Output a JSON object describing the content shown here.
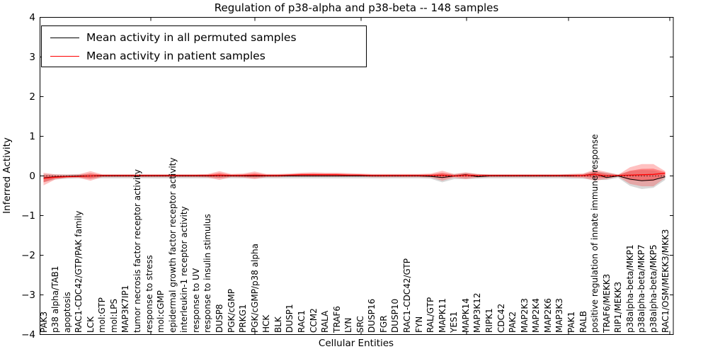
{
  "chart_data": {
    "type": "line",
    "title": "Regulation of p38-alpha and p38-beta -- 148 samples",
    "xlabel": "Cellular Entities",
    "ylabel": "Inferred Activity",
    "ylim": [
      -4,
      4
    ],
    "yticks": [
      4,
      3,
      2,
      1,
      0,
      -1,
      -2,
      -3,
      -4
    ],
    "grid": false,
    "legend_position": "upper left",
    "zero_line_style": "dotted",
    "sample_count": 148,
    "categories": [
      "PAK3",
      "p38 alpha/TAB1",
      "apoptosis",
      "RAC1-CDC42/GTP/PAK family",
      "LCK",
      "mol:GTP",
      "mol:LPS",
      "MAP3K7IP1",
      "tumor necrosis factor receptor activity",
      "response to stress",
      "mol:cGMP",
      "epidermal growth factor receptor activity",
      "interleukin-1 receptor activity",
      "response to UV",
      "response to insulin stimulus",
      "DUSP8",
      "PGK/cGMP",
      "PRKG1",
      "PGK/cGMP/p38 alpha",
      "HCK",
      "BLK",
      "DUSP1",
      "RAC1",
      "CCM2",
      "RALA",
      "TRAF6",
      "LYN",
      "SRC",
      "DUSP16",
      "FGR",
      "DUSP10",
      "RAC1-CDC42/GTP",
      "FYN",
      "RAL/GTP",
      "MAPK11",
      "YES1",
      "MAPK14",
      "MAP3K12",
      "RIPK1",
      "CDC42",
      "PAK2",
      "MAP2K3",
      "MAP2K4",
      "MAP2K6",
      "MAP3K3",
      "PAK1",
      "RALB",
      "positive regulation of innate immune response",
      "TRAF6/MEKK3",
      "RIP1/MEKK3",
      "p38alpha-beta/MKP1",
      "p38alpha-beta/MKP7",
      "p38alpha-beta/MKP5",
      "RAC1/OSM/MEKK3/MKK3"
    ],
    "series": [
      {
        "name": "Mean activity in all permuted samples",
        "color": "#000000",
        "band_color": "#999999",
        "values": [
          -0.05,
          -0.02,
          -0.01,
          0,
          0,
          0,
          0,
          0,
          0,
          0,
          0,
          0,
          0,
          0,
          0,
          0.01,
          0,
          0,
          0,
          0,
          0,
          0,
          0,
          0,
          0,
          0,
          0,
          0,
          0,
          0,
          0,
          0,
          0,
          -0.01,
          -0.04,
          0,
          0.03,
          -0.02,
          0,
          0,
          0,
          0,
          0,
          0,
          0,
          0,
          0.01,
          0.05,
          -0.04,
          0,
          -0.08,
          -0.12,
          -0.1,
          -0.02
        ],
        "band_lower": [
          -0.16,
          -0.09,
          -0.07,
          -0.06,
          -0.07,
          -0.06,
          -0.06,
          -0.06,
          -0.06,
          -0.06,
          -0.06,
          -0.06,
          -0.06,
          -0.06,
          -0.06,
          -0.06,
          -0.06,
          -0.06,
          -0.06,
          -0.06,
          -0.06,
          -0.06,
          -0.06,
          -0.06,
          -0.06,
          -0.06,
          -0.06,
          -0.06,
          -0.06,
          -0.06,
          -0.06,
          -0.06,
          -0.06,
          -0.07,
          -0.16,
          -0.08,
          -0.08,
          -0.07,
          -0.06,
          -0.06,
          -0.06,
          -0.06,
          -0.06,
          -0.06,
          -0.06,
          -0.07,
          -0.07,
          -0.1,
          -0.1,
          -0.05,
          -0.25,
          -0.33,
          -0.3,
          -0.1
        ],
        "band_upper": [
          0.05,
          0.04,
          0.04,
          0.05,
          0.05,
          0.04,
          0.04,
          0.04,
          0.04,
          0.04,
          0.04,
          0.04,
          0.04,
          0.04,
          0.04,
          0.04,
          0.04,
          0.04,
          0.04,
          0.04,
          0.04,
          0.04,
          0.04,
          0.04,
          0.04,
          0.04,
          0.04,
          0.04,
          0.04,
          0.04,
          0.04,
          0.04,
          0.04,
          0.04,
          0.06,
          0.05,
          0.08,
          0.05,
          0.04,
          0.04,
          0.04,
          0.04,
          0.04,
          0.04,
          0.04,
          0.05,
          0.05,
          0.12,
          0.08,
          0.04,
          0.12,
          0.15,
          0.14,
          0.06
        ]
      },
      {
        "name": "Mean activity in patient samples",
        "color": "#ff0000",
        "band_color": "#ff3333",
        "values": [
          -0.06,
          -0.03,
          -0.02,
          -0.01,
          0,
          0.01,
          0.01,
          0.01,
          0.01,
          0.01,
          0.01,
          0.01,
          0.01,
          0.01,
          0.01,
          0.02,
          0.01,
          0.01,
          0.02,
          0.01,
          0.01,
          0.02,
          0.03,
          0.03,
          0.03,
          0.03,
          0.02,
          0.02,
          0.01,
          0.01,
          0.01,
          0.01,
          0.01,
          0.01,
          0.02,
          0,
          0.02,
          0.01,
          0.01,
          0.01,
          0.01,
          0.01,
          0.01,
          0.01,
          0.01,
          0.01,
          0.01,
          0.04,
          0,
          0.01,
          0.02,
          0.03,
          0.04,
          0.07
        ],
        "band_lower": [
          -0.24,
          -0.09,
          -0.05,
          -0.05,
          -0.12,
          -0.03,
          -0.03,
          -0.03,
          -0.03,
          -0.03,
          -0.03,
          -0.03,
          -0.03,
          -0.03,
          -0.04,
          -0.1,
          -0.03,
          -0.04,
          -0.08,
          -0.03,
          -0.03,
          -0.02,
          -0.02,
          -0.02,
          -0.02,
          -0.02,
          -0.02,
          -0.02,
          -0.03,
          -0.03,
          -0.03,
          -0.03,
          -0.03,
          -0.04,
          -0.12,
          -0.04,
          -0.08,
          -0.04,
          -0.03,
          -0.03,
          -0.03,
          -0.03,
          -0.03,
          -0.03,
          -0.03,
          -0.04,
          -0.05,
          -0.12,
          -0.08,
          -0.02,
          -0.2,
          -0.26,
          -0.26,
          -0.05
        ],
        "band_upper": [
          0.08,
          0.04,
          0.03,
          0.04,
          0.12,
          0.04,
          0.04,
          0.04,
          0.04,
          0.04,
          0.04,
          0.04,
          0.04,
          0.04,
          0.05,
          0.12,
          0.05,
          0.06,
          0.11,
          0.05,
          0.05,
          0.06,
          0.08,
          0.09,
          0.08,
          0.08,
          0.07,
          0.06,
          0.05,
          0.05,
          0.05,
          0.05,
          0.05,
          0.06,
          0.13,
          0.05,
          0.09,
          0.05,
          0.04,
          0.04,
          0.04,
          0.04,
          0.04,
          0.04,
          0.04,
          0.05,
          0.06,
          0.16,
          0.1,
          0.03,
          0.22,
          0.3,
          0.3,
          0.12
        ]
      }
    ]
  }
}
